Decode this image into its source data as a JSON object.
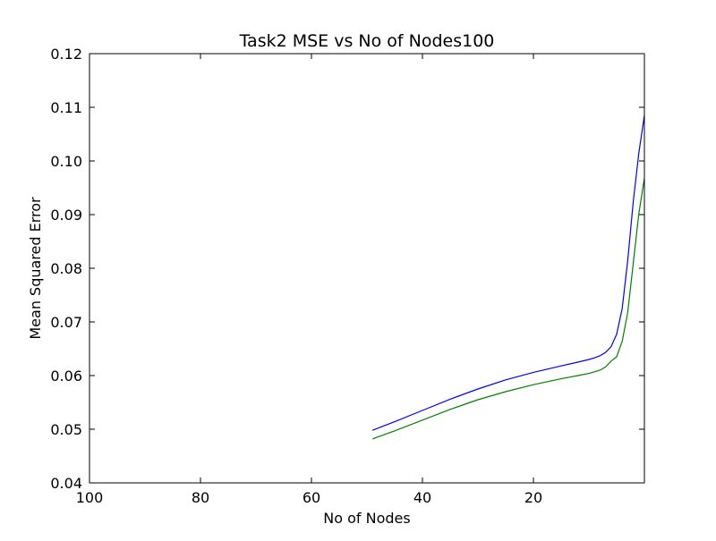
{
  "chart_data": {
    "type": "line",
    "title": "Task2 MSE vs No of Nodes100",
    "xlabel": "No of Nodes",
    "ylabel": "Mean Squared Error",
    "xlim": [
      100,
      0
    ],
    "ylim": [
      0.04,
      0.12
    ],
    "x_reversed": true,
    "grid": false,
    "xticks": [
      100,
      80,
      60,
      40,
      20
    ],
    "xtick_labels": [
      "100",
      "80",
      "60",
      "40",
      "20"
    ],
    "yticks": [
      0.04,
      0.05,
      0.06,
      0.07,
      0.08,
      0.09,
      0.1,
      0.11,
      0.12
    ],
    "ytick_labels": [
      "0.04",
      "0.05",
      "0.06",
      "0.07",
      "0.08",
      "0.09",
      "0.10",
      "0.11",
      "0.12"
    ],
    "series": [
      {
        "color": "#0000ff",
        "x": [
          49,
          45,
          40,
          35,
          30,
          25,
          20,
          15,
          12,
          10,
          9,
          8,
          7,
          6,
          5,
          4,
          3,
          2,
          1,
          0
        ],
        "y": [
          0.0498,
          0.0514,
          0.0535,
          0.0556,
          0.0575,
          0.0592,
          0.0606,
          0.0618,
          0.0625,
          0.063,
          0.0633,
          0.0637,
          0.0643,
          0.0654,
          0.0677,
          0.0725,
          0.0815,
          0.0925,
          0.1015,
          0.1085
        ]
      },
      {
        "color": "#008000",
        "x": [
          49,
          45,
          40,
          35,
          30,
          25,
          20,
          15,
          12,
          10,
          9,
          8,
          7,
          6,
          5,
          4,
          3,
          2,
          1,
          0
        ],
        "y": [
          0.0482,
          0.0497,
          0.0517,
          0.0537,
          0.0555,
          0.057,
          0.0583,
          0.0594,
          0.06,
          0.0604,
          0.0607,
          0.061,
          0.0616,
          0.0627,
          0.0635,
          0.0664,
          0.0718,
          0.081,
          0.0902,
          0.0968
        ]
      }
    ]
  }
}
